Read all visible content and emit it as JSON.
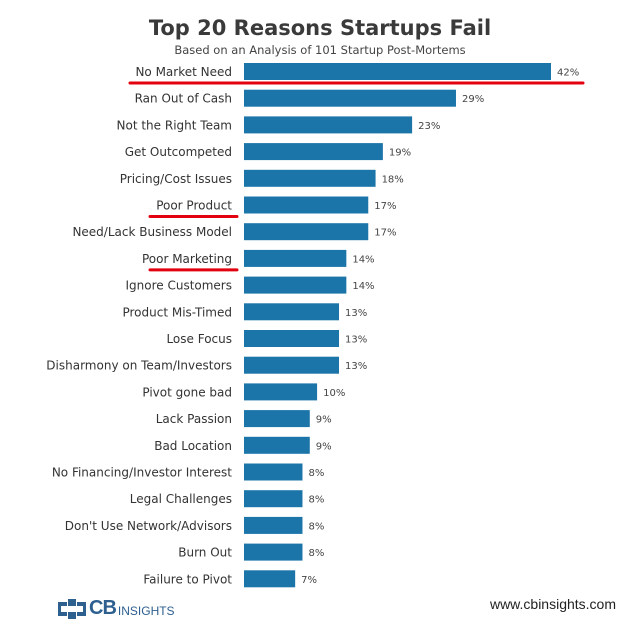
{
  "chart_data": {
    "type": "bar",
    "orientation": "horizontal",
    "title": "Top 20 Reasons Startups Fail",
    "subtitle": "Based on an Analysis of 101 Startup Post-Mortems",
    "categories": [
      "No Market Need",
      "Ran Out of Cash",
      "Not the Right Team",
      "Get Outcompeted",
      "Pricing/Cost Issues",
      "Poor Product",
      "Need/Lack Business Model",
      "Poor Marketing",
      "Ignore Customers",
      "Product Mis-Timed",
      "Lose Focus",
      "Disharmony on Team/Investors",
      "Pivot gone bad",
      "Lack Passion",
      "Bad Location",
      "No Financing/Investor Interest",
      "Legal Challenges",
      "Don't Use Network/Advisors",
      "Burn Out",
      "Failure to Pivot"
    ],
    "values": [
      42,
      29,
      23,
      19,
      18,
      17,
      17,
      14,
      14,
      13,
      13,
      13,
      10,
      9,
      9,
      8,
      8,
      8,
      8,
      7
    ],
    "value_labels": [
      "42%",
      "29%",
      "23%",
      "19%",
      "18%",
      "17%",
      "17%",
      "14%",
      "14%",
      "13%",
      "13%",
      "13%",
      "10%",
      "9%",
      "9%",
      "8%",
      "8%",
      "8%",
      "8%",
      "7%"
    ],
    "xlim": [
      0,
      42
    ],
    "underlined_categories": [
      "No Market Need",
      "Poor Product",
      "Poor Marketing"
    ],
    "colors": {
      "bar": "#1b75a8",
      "underline": "#e3000f"
    }
  },
  "footer": {
    "logo_cb": "CB",
    "logo_insights": "INSIGHTS",
    "url": "www.cbinsights.com"
  }
}
